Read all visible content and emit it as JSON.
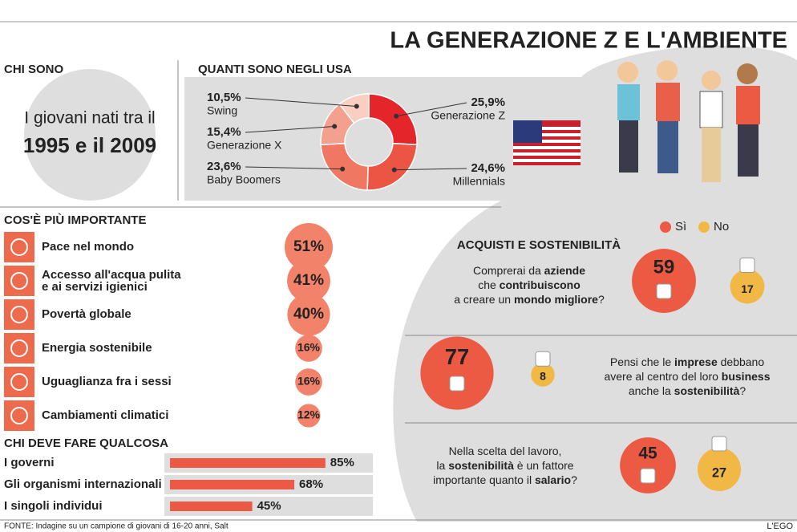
{
  "title": "LA GENERAZIONE Z E L'AMBIENTE",
  "who": {
    "heading": "CHI SONO",
    "line1": "I giovani nati tra il",
    "line2": "1995 e il 2009"
  },
  "chart_data": [
    {
      "type": "pie",
      "title": "QUANTI SONO NEGLI USA",
      "categories": [
        "Generazione Z",
        "Millennials",
        "Baby Boomers",
        "Generazione X",
        "Swing"
      ],
      "values": [
        25.9,
        24.6,
        23.6,
        15.4,
        10.5
      ],
      "value_labels": [
        "25,9%",
        "24,6%",
        "23,6%",
        "15,4%",
        "10,5%"
      ],
      "colors": [
        "#e4262b",
        "#ec5444",
        "#f07862",
        "#f4a08e",
        "#f9cfc2"
      ]
    },
    {
      "type": "bubble",
      "title": "COS'È PIÙ IMPORTANTE",
      "categories": [
        "Pace nel mondo",
        "Accesso all'acqua pulita\ne ai servizi igienici",
        "Povertà globale",
        "Energia sostenibile",
        "Uguaglianza fra i sessi",
        "Cambiamenti climatici"
      ],
      "values": [
        51,
        41,
        40,
        16,
        16,
        12
      ],
      "value_labels": [
        "51%",
        "41%",
        "40%",
        "16%",
        "16%",
        "12%"
      ],
      "color": "#f2826a"
    },
    {
      "type": "bar",
      "title": "CHI DEVE FARE QUALCOSA",
      "categories": [
        "I governi",
        "Gli organismi internazionali",
        "I singoli individui"
      ],
      "values": [
        85,
        68,
        45
      ],
      "value_labels": [
        "85%",
        "68%",
        "45%"
      ],
      "xlim": [
        0,
        100
      ],
      "color": "#ec5a45"
    },
    {
      "type": "bubble-pair",
      "title": "ACQUISTI E SOSTENIBILITÀ",
      "categories": [
        [
          [
            {
              "text": "Comprerai da "
            },
            {
              "text": "aziende",
              "bold": true
            }
          ],
          [
            {
              "text": "che "
            },
            {
              "text": "contribuiscono",
              "bold": true
            }
          ],
          [
            {
              "text": "a creare un "
            },
            {
              "text": "mondo migliore",
              "bold": true
            },
            {
              "text": "?"
            }
          ]
        ],
        [
          [
            {
              "text": "Pensi che le "
            },
            {
              "text": "imprese",
              "bold": true
            },
            {
              "text": " debbano"
            }
          ],
          [
            {
              "text": "avere al centro del loro "
            },
            {
              "text": "business",
              "bold": true
            }
          ],
          [
            {
              "text": "anche la "
            },
            {
              "text": "sostenibilità",
              "bold": true
            },
            {
              "text": "?"
            }
          ]
        ],
        [
          [
            {
              "text": "Nella scelta del lavoro,"
            }
          ],
          [
            {
              "text": "la "
            },
            {
              "text": "sostenibilità",
              "bold": true
            },
            {
              "text": " è un fattore"
            }
          ],
          [
            {
              "text": "importante quanto il "
            },
            {
              "text": "salario",
              "bold": true
            },
            {
              "text": "?"
            }
          ]
        ]
      ],
      "series": [
        {
          "name": "Sì",
          "color": "#ec5a44",
          "values": [
            59,
            77,
            45
          ]
        },
        {
          "name": "No",
          "color": "#f2b846",
          "values": [
            17,
            8,
            27
          ]
        }
      ]
    }
  ],
  "source": "FONTE: Indagine su un campione di giovani di 16-20 anni, Salt",
  "brand": "L'EGO"
}
